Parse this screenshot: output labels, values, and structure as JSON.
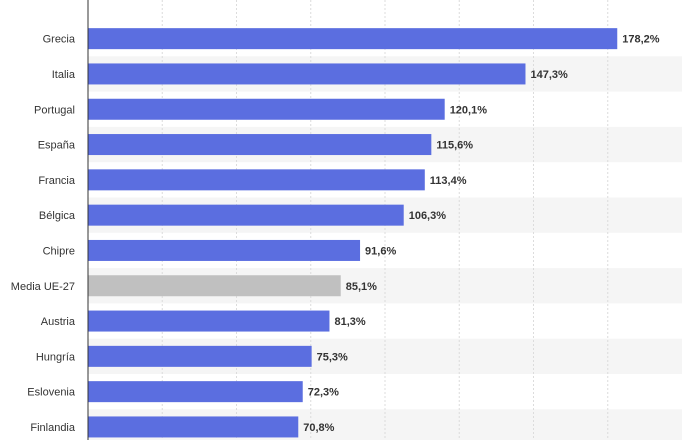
{
  "chart_data": {
    "type": "bar",
    "orientation": "horizontal",
    "categories": [
      "Grecia",
      "Italia",
      "Portugal",
      "España",
      "Francia",
      "Bélgica",
      "Chipre",
      "Media UE-27",
      "Austria",
      "Hungría",
      "Eslovenia",
      "Finlandia"
    ],
    "values": [
      178.2,
      147.3,
      120.1,
      115.6,
      113.4,
      106.3,
      91.6,
      85.1,
      81.3,
      75.3,
      72.3,
      70.8
    ],
    "value_labels": [
      "178,2%",
      "147,3%",
      "120,1%",
      "115,6%",
      "113,4%",
      "106,3%",
      "91,6%",
      "85,1%",
      "81,3%",
      "75,3%",
      "72,3%",
      "70,8%"
    ],
    "highlight_category": "Media UE-27",
    "xlim": [
      0,
      200
    ],
    "grid": true,
    "colors": {
      "bar": "#5b6ee0",
      "highlight": "#c0c0c0",
      "stripe": "#f5f5f5",
      "grid": "#dcdcdc",
      "axis": "#333333"
    }
  }
}
